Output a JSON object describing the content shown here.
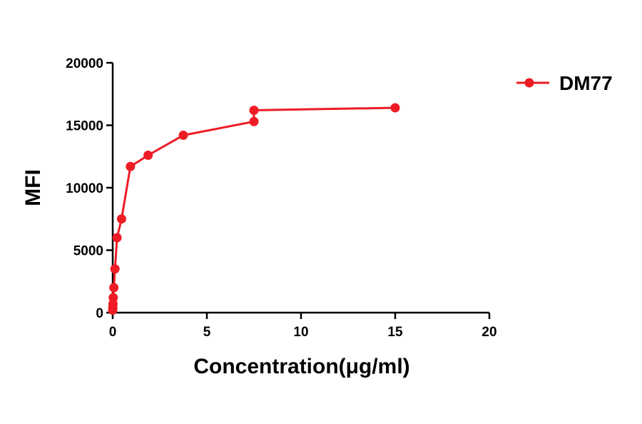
{
  "chart_data": {
    "type": "line",
    "title": "",
    "xlabel": "Concentration(μg/ml)",
    "ylabel": "MFI",
    "xlim": [
      0,
      20
    ],
    "ylim": [
      0,
      20000
    ],
    "xticks": [
      0,
      5,
      10,
      15,
      20
    ],
    "yticks": [
      0,
      5000,
      10000,
      15000,
      20000
    ],
    "grid": false,
    "legend_position": "top-right",
    "series": [
      {
        "name": "DM77",
        "color": "#ee1c25",
        "marker": "circle",
        "points": [
          {
            "x": 0.0,
            "y": 200
          },
          {
            "x": 0.007,
            "y": 400
          },
          {
            "x": 0.015,
            "y": 700
          },
          {
            "x": 0.03,
            "y": 1200
          },
          {
            "x": 0.06,
            "y": 2000
          },
          {
            "x": 0.12,
            "y": 3500
          },
          {
            "x": 0.23,
            "y": 6000
          },
          {
            "x": 0.47,
            "y": 7500
          },
          {
            "x": 0.94,
            "y": 11700
          },
          {
            "x": 1.88,
            "y": 12600
          },
          {
            "x": 3.75,
            "y": 14200
          },
          {
            "x": 7.5,
            "y": 15300
          },
          {
            "x": 7.5,
            "y": 16200
          },
          {
            "x": 15,
            "y": 16400
          }
        ]
      }
    ]
  }
}
